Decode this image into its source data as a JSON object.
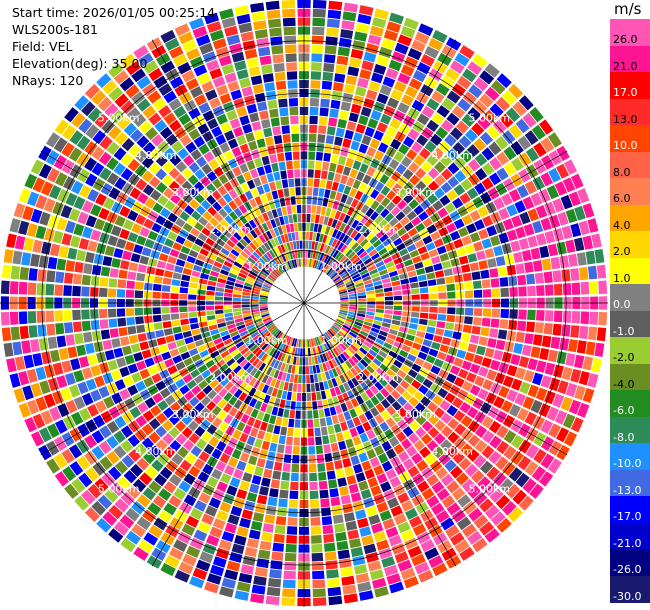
{
  "header": {
    "start_time": "Start time: 2026/01/05 00:25:14",
    "instrument": "WLS200s-181",
    "field": "Field: VEL",
    "elevation": "Elevation(deg): 35.00",
    "nrays": "NRays: 120"
  },
  "colorbar": {
    "unit": "m/s",
    "ticks": [
      "26.0",
      "21.0",
      "17.0",
      "13.0",
      "10.0",
      "8.0",
      "6.0",
      "4.0",
      "2.0",
      "1.0",
      "0.0",
      "-1.0",
      "-2.0",
      "-4.0",
      "-6.0",
      "-8.0",
      "-10.0",
      "-13.0",
      "-17.0",
      "-21.0",
      "-26.0",
      "-30.0"
    ],
    "colors": [
      "#ff55b4",
      "#ff1493",
      "#ff0000",
      "#ff2a2a",
      "#ff4500",
      "#ff6347",
      "#ff7f50",
      "#ffa500",
      "#ffd700",
      "#ffff00",
      "#808080",
      "#5f5f5f",
      "#9acd32",
      "#6b8e23",
      "#228b22",
      "#2e8b57",
      "#1e90ff",
      "#4169e1",
      "#0000ff",
      "#0000cd",
      "#000080",
      "#191970"
    ]
  },
  "chart_data": {
    "type": "heatmap",
    "subtype": "ppi-polar",
    "field": "VEL",
    "units": "m/s",
    "nrays": 120,
    "elevation_deg": 35.0,
    "ring_labels": [
      "1.00km",
      "2.00km",
      "3.00km",
      "4.00km",
      "5.00km"
    ],
    "ring_ranges_km": [
      1,
      2,
      3,
      4,
      5
    ],
    "max_range_km": 5.8,
    "vlim": [
      -30.0,
      26.0
    ],
    "notes": "noisy velocity field; coherent positive (pink/red/orange) band in southeast sector"
  }
}
